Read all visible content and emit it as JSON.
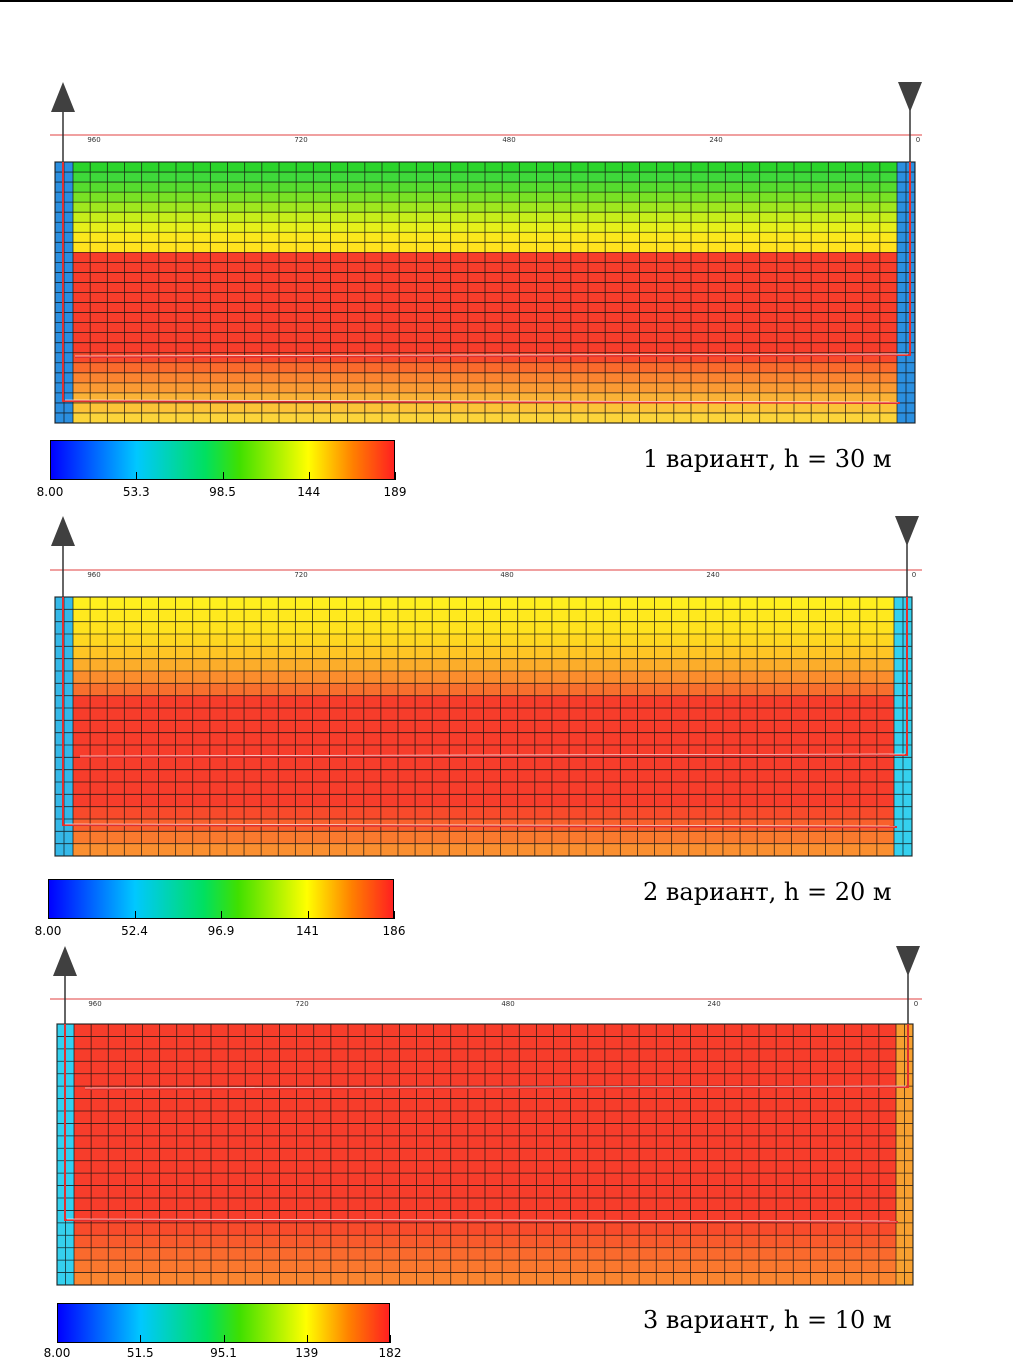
{
  "panels": [
    {
      "caption": "1 вариант, h = 30 м",
      "scale_ticks": [
        "960",
        "720",
        "480",
        "240",
        "0"
      ],
      "colorbar": {
        "labels": [
          "8.00",
          "53.3",
          "98.5",
          "144",
          "189"
        ],
        "min": 8.0,
        "max": 189
      },
      "field_profile": {
        "description_free": true,
        "rows_top_to_bottom": [
          "#2bd42b",
          "#3ed93a",
          "#55dc2e",
          "#78e224",
          "#9fe81e",
          "#c6ee1a",
          "#e6f01a",
          "#fbe81c",
          "#ffe31e",
          "#f73d2b",
          "#f73d2b",
          "#f73d2b",
          "#f73d2b",
          "#f73d2b",
          "#f73d2b",
          "#f73d2b",
          "#f73d2b",
          "#f73d2b",
          "#f73d2b",
          "#f94a2b",
          "#fb6a2c",
          "#fb8430",
          "#fb9a33",
          "#fbb236",
          "#fcc338",
          "#fcd43a"
        ],
        "left_edge_color": "#2b8fe0",
        "right_edge_color": "#2b8fe0"
      }
    },
    {
      "caption": "2 вариант, h = 20 м",
      "scale_ticks": [
        "960",
        "720",
        "480",
        "240",
        "0"
      ],
      "colorbar": {
        "labels": [
          "8.00",
          "52.4",
          "96.9",
          "141",
          "186"
        ],
        "min": 8.0,
        "max": 186
      },
      "field_profile": {
        "rows_top_to_bottom": [
          "#ffef1e",
          "#ffe91e",
          "#ffe21e",
          "#ffd720",
          "#ffc524",
          "#fcad2a",
          "#fb8d2d",
          "#f86f2d",
          "#f73d2b",
          "#f73d2b",
          "#f73d2b",
          "#f73d2b",
          "#f73d2b",
          "#f73d2b",
          "#f73d2b",
          "#f73d2b",
          "#f73d2b",
          "#f84a2b",
          "#f9602c",
          "#fa7a2e",
          "#fb8f30"
        ],
        "left_edge_color": "#35b8e8",
        "right_edge_color": "#35d0ee"
      }
    },
    {
      "caption": "3 вариант, h = 10 м",
      "scale_ticks": [
        "960",
        "720",
        "480",
        "240",
        "0"
      ],
      "colorbar": {
        "labels": [
          "8.00",
          "51.5",
          "95.1",
          "139",
          "182"
        ],
        "min": 8.0,
        "max": 182
      },
      "field_profile": {
        "rows_top_to_bottom": [
          "#f73d2b",
          "#f73d2b",
          "#f73d2b",
          "#f73d2b",
          "#f73d2b",
          "#f73d2b",
          "#f73d2b",
          "#f73d2b",
          "#f73d2b",
          "#f73d2b",
          "#f73d2b",
          "#f73d2b",
          "#f73d2b",
          "#f73d2b",
          "#f73d2b",
          "#f73d2b",
          "#f84b2b",
          "#f95a2c",
          "#fa6a2d",
          "#fb782e",
          "#fb8530"
        ],
        "left_edge_color": "#35d0ee",
        "right_edge_color": "#f7a030"
      }
    }
  ],
  "colors": {
    "scale_line": "#e04040",
    "well_line": "#e03030",
    "grid_line": "#111111",
    "arrow": "#404040"
  },
  "icons": [
    "arrow-up-icon",
    "arrow-down-icon"
  ]
}
